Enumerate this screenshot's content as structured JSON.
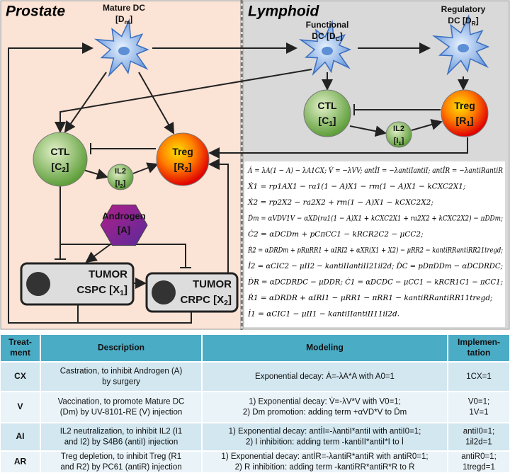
{
  "panels": {
    "prostate": "Prostate",
    "lymphoid": "Lymphoid"
  },
  "nodes": [
    {
      "title": "Mature DC",
      "var": "[D",
      "sub": "m",
      "end": "]"
    },
    {
      "title": "Functional",
      "var": "DC [D",
      "sub": "C",
      "end": "]"
    },
    {
      "title": "Regulatory",
      "var": "DC [D",
      "sub": "R",
      "end": "]"
    },
    {
      "title": "CTL",
      "var": "[C",
      "sub": "1",
      "end": "]"
    },
    {
      "title": "Treg",
      "var": "[R",
      "sub": "1",
      "end": "]"
    },
    {
      "title": "IL2",
      "var": "[I",
      "sub": "1",
      "end": "]"
    },
    {
      "title": "CTL",
      "var": "[C",
      "sub": "2",
      "end": "]"
    },
    {
      "title": "Treg",
      "var": "[R",
      "sub": "2",
      "end": "]"
    },
    {
      "title": "IL2",
      "var": "[I",
      "sub": "2",
      "end": "]"
    },
    {
      "title": "Androgen",
      "var": "[A]"
    },
    {
      "title": "TUMOR",
      "var": "CSPC [X",
      "sub": "1",
      "end": "]"
    },
    {
      "title": "TUMOR",
      "var": "CRPC [X",
      "sub": "2",
      "end": "]"
    }
  ],
  "equations": [
    "Ȧ = λA(1 − A) − λA1CX;  V̇ = −λVV;  antİI = −λantiIantiI;  antİR = −λantiRantiR",
    "Ẋ1 = rp1AX1 − ra1(1 − A)X1 − rm(1 − A)X1 − kCXC2X1;",
    "Ẋ2 = rp2X2 − ra2X2 + rm(1 − A)X1 − kCXC2X2;",
    "Ḋm = αVDV1V − αXD(ra1(1 − A)X1 + kCXC2X1 + ra2X2 + kCXC2X2) − πDDm;",
    "Ċ2 = αDCDm + pCπCC1 − kRCR2C2 − μCC2;",
    "Ṙ2 = αDRDm + pRπRR1 + αIRI2 + αXR(X1 + X2) − μRR2 − kantiRRantiRR21tregd;",
    "İ2 = αCIC2 − μII2 − kantiIIantiII21il2d;  ḊC = pDπDDm − αDCDRDC;",
    "ḊR = αDCDRDC − μDDR;  Ċ1 = αDCDC − μCC1 − kRCR1C1 − πCC1;",
    "Ṙ1 = αDRDR + αIRI1 − μRR1 − πRR1 − kantiRRantiRR11tregd;",
    "İ1 = αCIC1 − μII1 − kantiIIantiII11il2d."
  ],
  "table": {
    "header": [
      [
        "Treat-",
        "ment"
      ],
      [
        "Description"
      ],
      [
        "Modeling"
      ],
      [
        "Implemen-",
        "tation"
      ]
    ],
    "rows": [
      [
        [
          "CX"
        ],
        [
          "Castration, to inhibit Androgen (A)",
          "by surgery"
        ],
        [
          "Exponential decay: Ȧ=-λA*A with A0=1"
        ],
        [
          "1CX=1"
        ]
      ],
      [
        [
          "V"
        ],
        [
          "Vaccination, to promote Mature DC",
          "(Dm) by UV-8101-RE (V) injection"
        ],
        [
          "1) Exponential decay: V̇=-λV*V with V0=1;",
          "2) Dm promotion: adding term +αVD*V to Ḋm"
        ],
        [
          "V0=1;",
          "1V=1"
        ]
      ],
      [
        [
          "AI"
        ],
        [
          "IL2 neutralization, to inhibit IL2 (I1",
          "and I2) by S4B6 (antiI) injection"
        ],
        [
          "1) Exponential decay: antİI=-λantiI*antiI with antiI0=1;",
          "2) I inhibition: adding term -kantiII*antiI*I to İ"
        ],
        [
          "antiI0=1;",
          "1il2d=1"
        ]
      ],
      [
        [
          "AR"
        ],
        [
          "Treg depletion, to inhibit Treg (R1",
          "and R2) by PC61 (antiR) injection"
        ],
        [
          "1) Exponential decay: antİR=-λantiR*antiR with antiR0=1;",
          "2) R inhibition: adding term -kantiRR*antiR*R to Ṙ"
        ],
        [
          "antiR0=1;",
          "1tregd=1"
        ]
      ]
    ]
  }
}
